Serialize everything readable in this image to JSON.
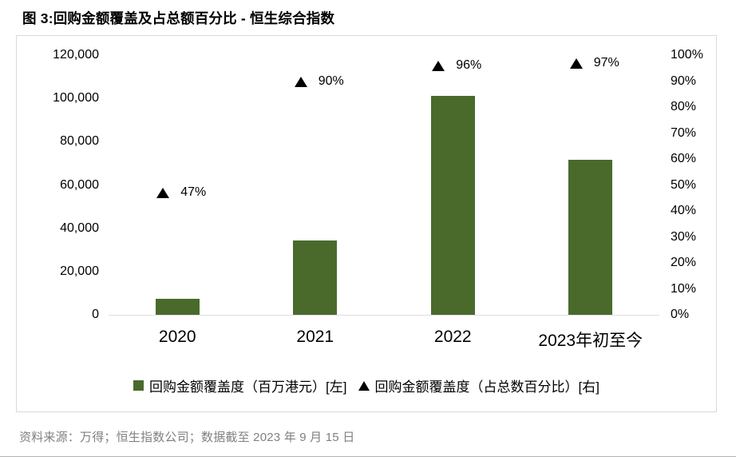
{
  "page": {
    "title": "图 3:回购金额覆盖及占总额百分比 - 恒生综合指数",
    "source": "资料来源：万得；恒生指数公司；数据截至 2023 年 9 月 15 日"
  },
  "chart_data": {
    "type": "bar",
    "subtype": "combo-bar-with-triangle-markers",
    "title": "图 3:回购金额覆盖及占总额百分比 - 恒生综合指数",
    "categories": [
      "2020",
      "2021",
      "2022",
      "2023年初至今"
    ],
    "series": [
      {
        "name": "回购金额覆盖度（百万港元）[左]",
        "type": "bar",
        "axis": "left",
        "color": "#4a6a2c",
        "values": [
          7500,
          34500,
          101000,
          71500
        ]
      },
      {
        "name": "回购金额覆盖度（占总数百分比）[右]",
        "type": "scatter",
        "marker": "triangle",
        "axis": "right",
        "color": "#000000",
        "values": [
          47,
          90,
          96,
          97
        ],
        "labels": [
          "47%",
          "90%",
          "96%",
          "97%"
        ]
      }
    ],
    "left_axis": {
      "min": 0,
      "max": 120000,
      "step": 20000,
      "tick_labels": [
        "0",
        "20,000",
        "40,000",
        "60,000",
        "80,000",
        "100,000",
        "120,000"
      ]
    },
    "right_axis": {
      "min": 0,
      "max": 100,
      "step": 10,
      "tick_labels": [
        "0%",
        "10%",
        "20%",
        "30%",
        "40%",
        "50%",
        "60%",
        "70%",
        "80%",
        "90%",
        "100%"
      ]
    },
    "grid": false,
    "legend_position": "bottom-inside"
  }
}
